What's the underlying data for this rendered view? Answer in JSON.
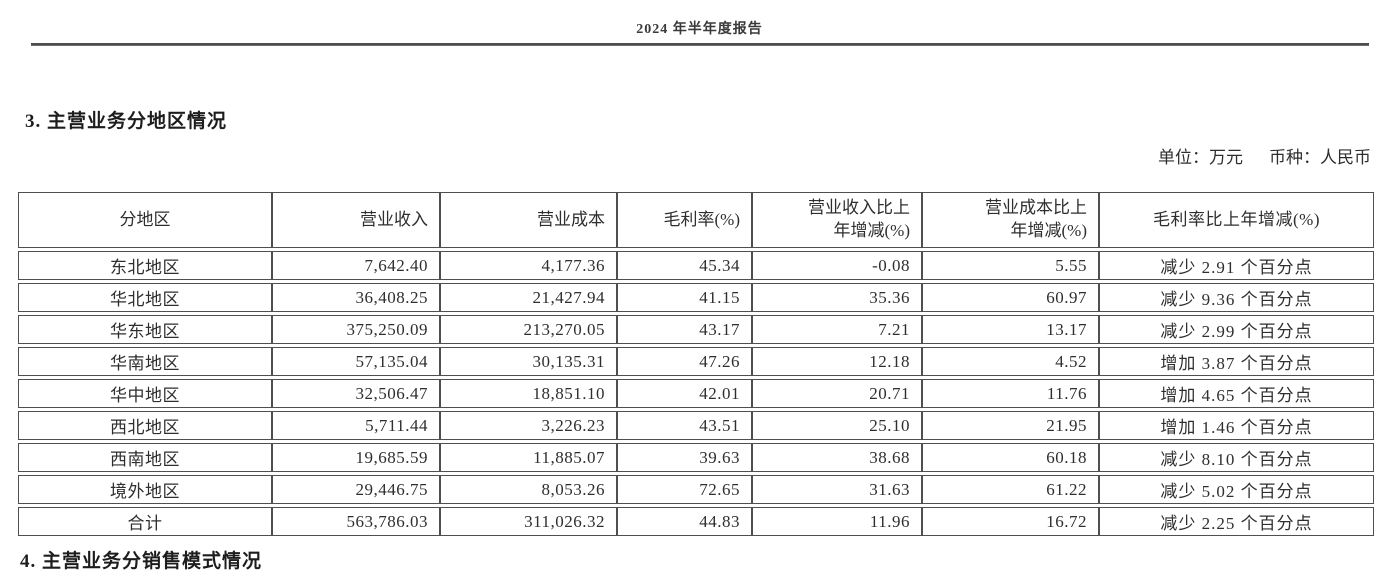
{
  "page": {
    "header_title": "2024 年半年度报告",
    "section_heading": "3. 主营业务分地区情况",
    "unit_label": "单位：万元",
    "currency_label": "币种：人民币",
    "next_section_heading": "4. 主营业务分销售模式情况"
  },
  "table": {
    "columns": [
      "分地区",
      "营业收入",
      "营业成本",
      "毛利率(%)",
      "营业收入比上\n年增减(%)",
      "营业成本比上\n年增减(%)",
      "毛利率比上年增减(%)"
    ],
    "rows": [
      [
        "东北地区",
        "7,642.40",
        "4,177.36",
        "45.34",
        "-0.08",
        "5.55",
        "减少 2.91 个百分点"
      ],
      [
        "华北地区",
        "36,408.25",
        "21,427.94",
        "41.15",
        "35.36",
        "60.97",
        "减少 9.36 个百分点"
      ],
      [
        "华东地区",
        "375,250.09",
        "213,270.05",
        "43.17",
        "7.21",
        "13.17",
        "减少 2.99 个百分点"
      ],
      [
        "华南地区",
        "57,135.04",
        "30,135.31",
        "47.26",
        "12.18",
        "4.52",
        "增加 3.87 个百分点"
      ],
      [
        "华中地区",
        "32,506.47",
        "18,851.10",
        "42.01",
        "20.71",
        "11.76",
        "增加 4.65 个百分点"
      ],
      [
        "西北地区",
        "5,711.44",
        "3,226.23",
        "43.51",
        "25.10",
        "21.95",
        "增加 1.46 个百分点"
      ],
      [
        "西南地区",
        "19,685.59",
        "11,885.07",
        "39.63",
        "38.68",
        "60.18",
        "减少 8.10 个百分点"
      ],
      [
        "境外地区",
        "29,446.75",
        "8,053.26",
        "72.65",
        "31.63",
        "61.22",
        "减少 5.02 个百分点"
      ],
      [
        "合计",
        "563,786.03",
        "311,026.32",
        "44.83",
        "11.96",
        "16.72",
        "减少 2.25 个百分点"
      ]
    ]
  }
}
